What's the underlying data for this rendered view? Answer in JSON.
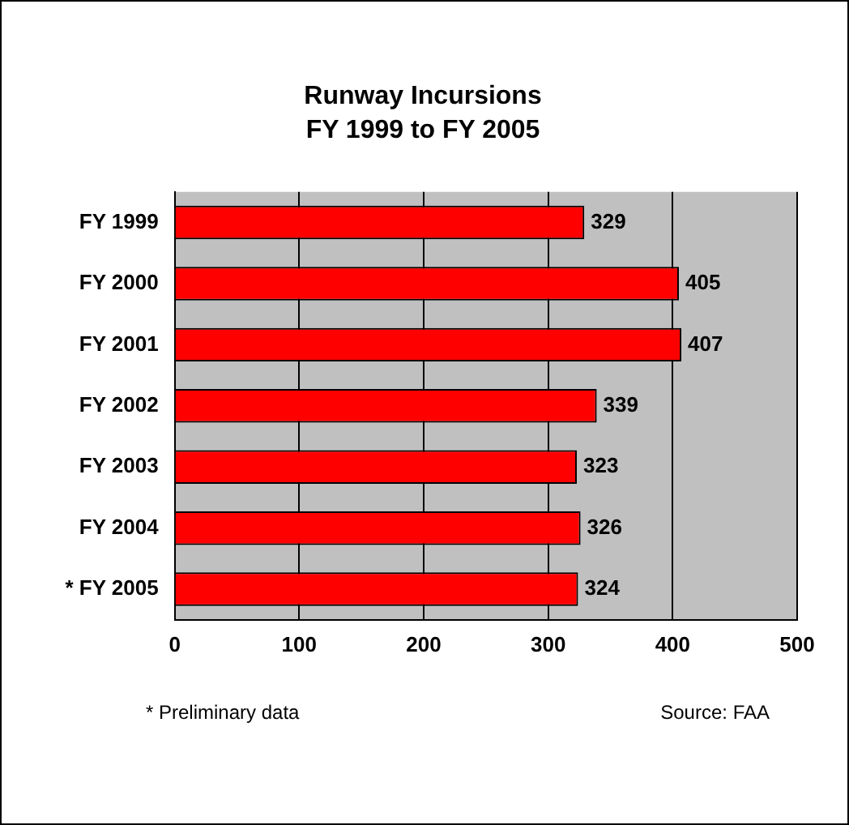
{
  "chart_data": {
    "type": "bar",
    "orientation": "horizontal",
    "title": "Runway Incursions",
    "subtitle": "FY 1999 to FY 2005",
    "categories": [
      "FY 1999",
      "FY 2000",
      "FY 2001",
      "FY 2002",
      "FY 2003",
      "FY 2004",
      "* FY 2005"
    ],
    "values": [
      329,
      405,
      407,
      339,
      323,
      326,
      324
    ],
    "color": "#ff0000",
    "xlim": [
      0,
      500
    ],
    "xticks": [
      0,
      100,
      200,
      300,
      400,
      500
    ],
    "grid": "x",
    "data_labels": true,
    "annotations": [
      "* Preliminary data",
      "Source: FAA"
    ]
  }
}
